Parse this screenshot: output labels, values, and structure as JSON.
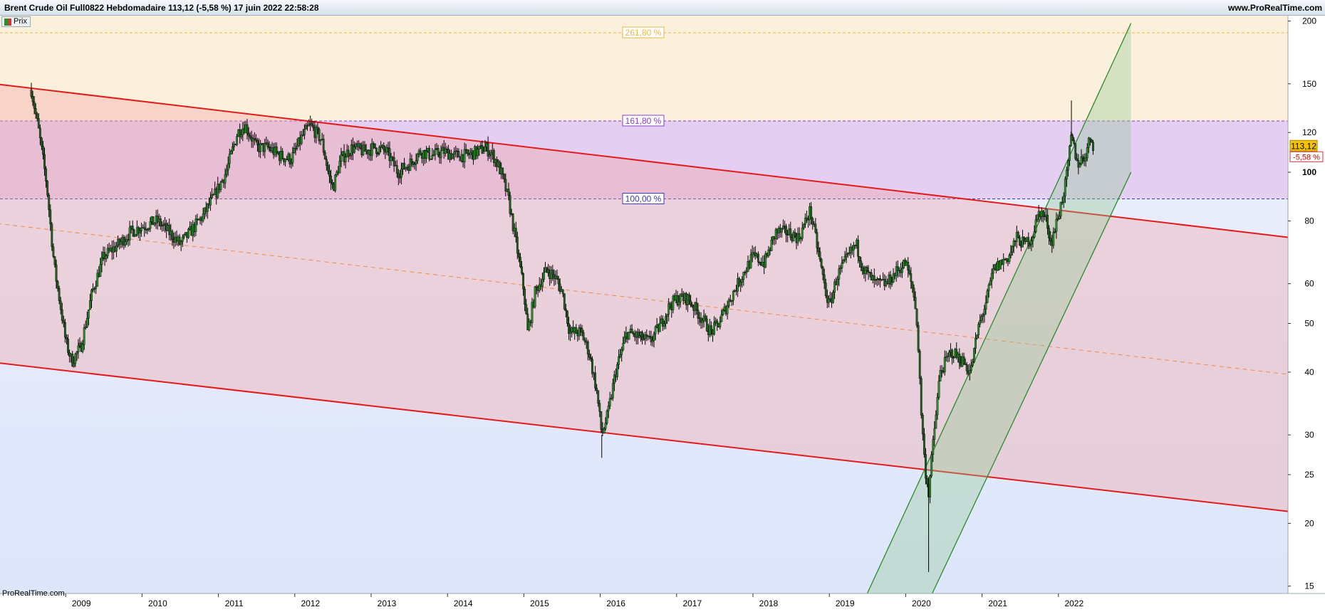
{
  "header": {
    "title": "Brent Crude Oil Full0822 Hebdomadaire 113,12 (-5,58 %) 17 juin 2022 22:58:28",
    "site": "www.ProRealTime.com"
  },
  "legend_button": {
    "label": "Prix"
  },
  "watermark": "ProRealTime.com",
  "colors": {
    "candle_up": "#2e8b2e",
    "candle_outline": "#000000",
    "channel_line": "#e21b1b",
    "channel_mid": "#f08a4b",
    "green_channel": "#2c8a2c",
    "zone_top": "#faf0dc",
    "zone_161": "#e4cef2",
    "zone_100": "#f2c9d4",
    "zone_below": "#e3e9fb"
  },
  "chart_data": {
    "type": "candlestick",
    "scale": "log",
    "ylim": [
      14.5,
      205
    ],
    "y_ticks": [
      "200",
      "150",
      "120",
      "100",
      "80",
      "60",
      "50",
      "40",
      "30",
      "25",
      "20",
      "15"
    ],
    "x_ticks": [
      "2009",
      "2010",
      "2011",
      "2012",
      "2013",
      "2014",
      "2015",
      "2016",
      "2017",
      "2018",
      "2019",
      "2020",
      "2021",
      "2022"
    ],
    "last_price": "113,12",
    "change_pct": "-5,58 %",
    "fib_levels": [
      {
        "label": "261,80 %",
        "price": 189.5,
        "color": "#e7b84a"
      },
      {
        "label": "161,80 %",
        "price": 126.5,
        "color": "#8a3fc4"
      },
      {
        "label": "100,00 %",
        "price": 88.5,
        "color": "#3c3ca8"
      }
    ],
    "price_path": [
      [
        2008.55,
        146
      ],
      [
        2008.65,
        120
      ],
      [
        2008.75,
        95
      ],
      [
        2008.85,
        65
      ],
      [
        2008.95,
        52
      ],
      [
        2009.0,
        46
      ],
      [
        2009.08,
        42
      ],
      [
        2009.2,
        45
      ],
      [
        2009.35,
        58
      ],
      [
        2009.5,
        68
      ],
      [
        2009.7,
        72
      ],
      [
        2009.85,
        76
      ],
      [
        2010.0,
        78
      ],
      [
        2010.2,
        80
      ],
      [
        2010.35,
        76
      ],
      [
        2010.5,
        72
      ],
      [
        2010.6,
        75
      ],
      [
        2010.8,
        82
      ],
      [
        2010.95,
        90
      ],
      [
        2011.1,
        100
      ],
      [
        2011.25,
        120
      ],
      [
        2011.35,
        124
      ],
      [
        2011.5,
        112
      ],
      [
        2011.65,
        112
      ],
      [
        2011.8,
        108
      ],
      [
        2011.95,
        106
      ],
      [
        2012.1,
        118
      ],
      [
        2012.2,
        124
      ],
      [
        2012.35,
        116
      ],
      [
        2012.45,
        98
      ],
      [
        2012.5,
        93
      ],
      [
        2012.6,
        106
      ],
      [
        2012.75,
        112
      ],
      [
        2012.9,
        110
      ],
      [
        2013.05,
        112
      ],
      [
        2013.2,
        110
      ],
      [
        2013.35,
        100
      ],
      [
        2013.5,
        104
      ],
      [
        2013.65,
        110
      ],
      [
        2013.8,
        108
      ],
      [
        2013.95,
        110
      ],
      [
        2014.1,
        108
      ],
      [
        2014.25,
        108
      ],
      [
        2014.4,
        110
      ],
      [
        2014.5,
        112
      ],
      [
        2014.6,
        108
      ],
      [
        2014.7,
        100
      ],
      [
        2014.8,
        88
      ],
      [
        2014.9,
        72
      ],
      [
        2015.0,
        58
      ],
      [
        2015.05,
        48
      ],
      [
        2015.15,
        58
      ],
      [
        2015.3,
        64
      ],
      [
        2015.4,
        62
      ],
      [
        2015.5,
        58
      ],
      [
        2015.6,
        48
      ],
      [
        2015.75,
        48
      ],
      [
        2015.85,
        44
      ],
      [
        2015.95,
        37
      ],
      [
        2016.02,
        30
      ],
      [
        2016.1,
        33
      ],
      [
        2016.2,
        40
      ],
      [
        2016.35,
        48
      ],
      [
        2016.5,
        47
      ],
      [
        2016.65,
        46
      ],
      [
        2016.8,
        50
      ],
      [
        2016.9,
        54
      ],
      [
        2017.0,
        56
      ],
      [
        2017.15,
        56
      ],
      [
        2017.3,
        52
      ],
      [
        2017.45,
        48
      ],
      [
        2017.55,
        50
      ],
      [
        2017.7,
        56
      ],
      [
        2017.85,
        62
      ],
      [
        2018.0,
        68
      ],
      [
        2018.15,
        66
      ],
      [
        2018.3,
        76
      ],
      [
        2018.45,
        76
      ],
      [
        2018.6,
        74
      ],
      [
        2018.75,
        84
      ],
      [
        2018.85,
        70
      ],
      [
        2018.95,
        58
      ],
      [
        2019.0,
        54
      ],
      [
        2019.1,
        62
      ],
      [
        2019.25,
        68
      ],
      [
        2019.35,
        72
      ],
      [
        2019.45,
        64
      ],
      [
        2019.6,
        60
      ],
      [
        2019.75,
        60
      ],
      [
        2019.9,
        64
      ],
      [
        2020.0,
        66
      ],
      [
        2020.1,
        58
      ],
      [
        2020.15,
        50
      ],
      [
        2020.2,
        34
      ],
      [
        2020.25,
        26
      ],
      [
        2020.3,
        23
      ],
      [
        2020.35,
        28
      ],
      [
        2020.45,
        40
      ],
      [
        2020.6,
        44
      ],
      [
        2020.75,
        42
      ],
      [
        2020.85,
        40
      ],
      [
        2020.95,
        49
      ],
      [
        2021.05,
        55
      ],
      [
        2021.15,
        64
      ],
      [
        2021.25,
        66
      ],
      [
        2021.35,
        68
      ],
      [
        2021.45,
        74
      ],
      [
        2021.55,
        72
      ],
      [
        2021.65,
        74
      ],
      [
        2021.75,
        84
      ],
      [
        2021.85,
        80
      ],
      [
        2021.9,
        72
      ],
      [
        2022.0,
        82
      ],
      [
        2022.1,
        96
      ],
      [
        2022.17,
        118
      ],
      [
        2022.25,
        104
      ],
      [
        2022.35,
        108
      ],
      [
        2022.42,
        118
      ],
      [
        2022.46,
        113
      ]
    ]
  }
}
